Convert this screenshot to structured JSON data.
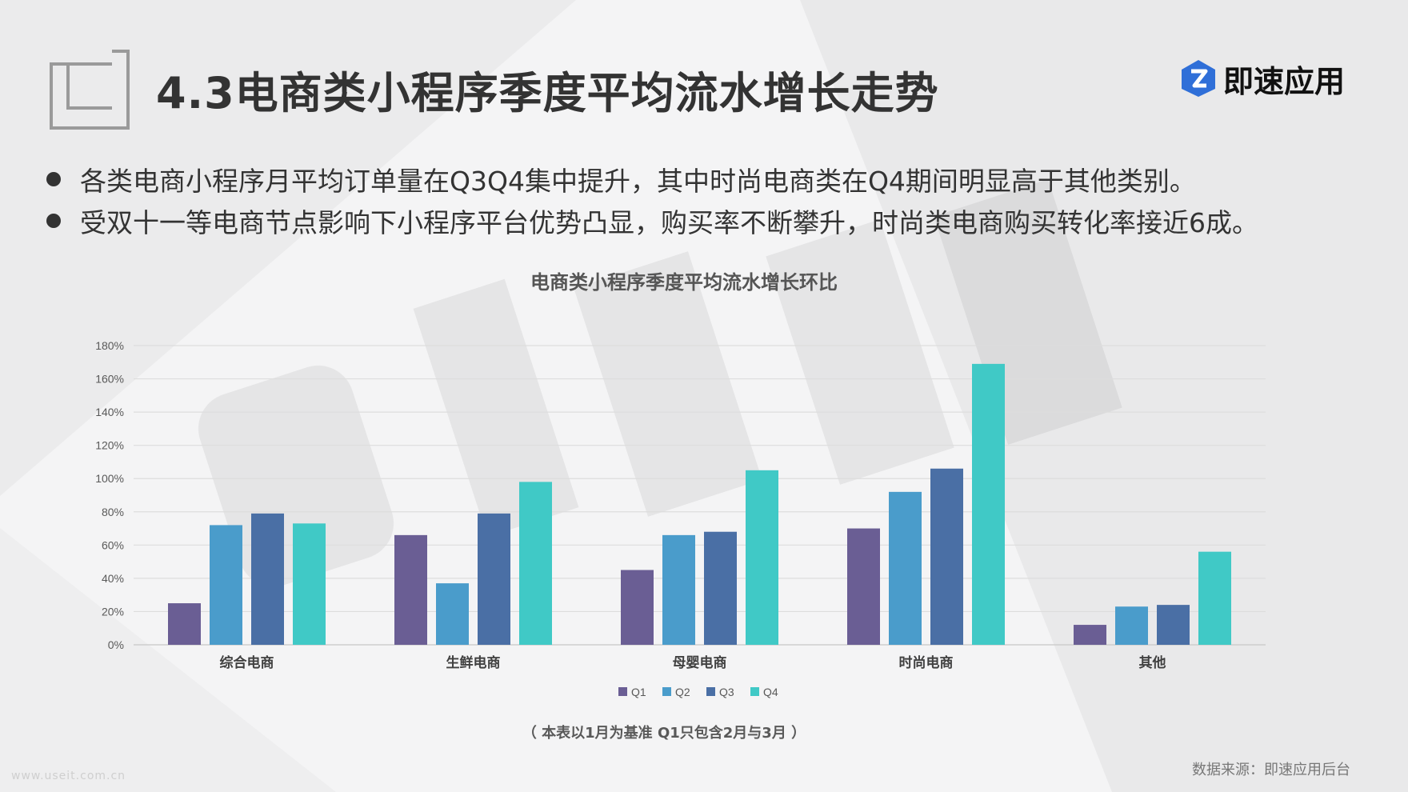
{
  "header": {
    "title": "4.3电商类小程序季度平均流水增长走势",
    "logo_text": "即速应用"
  },
  "bullets": [
    "各类电商小程序月平均订单量在Q3Q4集中提升，其中时尚电商类在Q4期间明显高于其他类别。",
    "受双十一等电商节点影响下小程序平台优势凸显，购买率不断攀升，时尚类电商购买转化率接近6成。"
  ],
  "note": "（ 本表以1月为基准     Q1只包含2月与3月 ）",
  "source": "数据来源：即速应用后台",
  "watermark_url": "www.useit.com.cn",
  "colors": {
    "Q1": "#6a5e94",
    "Q2": "#4a9ccb",
    "Q3": "#4a6fa5",
    "Q4": "#40c9c6",
    "logo": "#2f6fd8"
  },
  "chart_data": {
    "type": "bar",
    "title": "电商类小程序季度平均流水增长环比",
    "categories": [
      "综合电商",
      "生鲜电商",
      "母婴电商",
      "时尚电商",
      "其他"
    ],
    "series": [
      {
        "name": "Q1",
        "values": [
          25,
          66,
          45,
          70,
          12
        ]
      },
      {
        "name": "Q2",
        "values": [
          72,
          37,
          66,
          92,
          23
        ]
      },
      {
        "name": "Q3",
        "values": [
          79,
          79,
          68,
          106,
          24
        ]
      },
      {
        "name": "Q4",
        "values": [
          73,
          98,
          105,
          169,
          56
        ]
      }
    ],
    "y_ticks": [
      "0%",
      "20%",
      "40%",
      "60%",
      "80%",
      "100%",
      "120%",
      "140%",
      "160%",
      "180%"
    ],
    "ylim": [
      0,
      180
    ],
    "y_unit": "%",
    "grid": true,
    "legend_position": "bottom"
  }
}
